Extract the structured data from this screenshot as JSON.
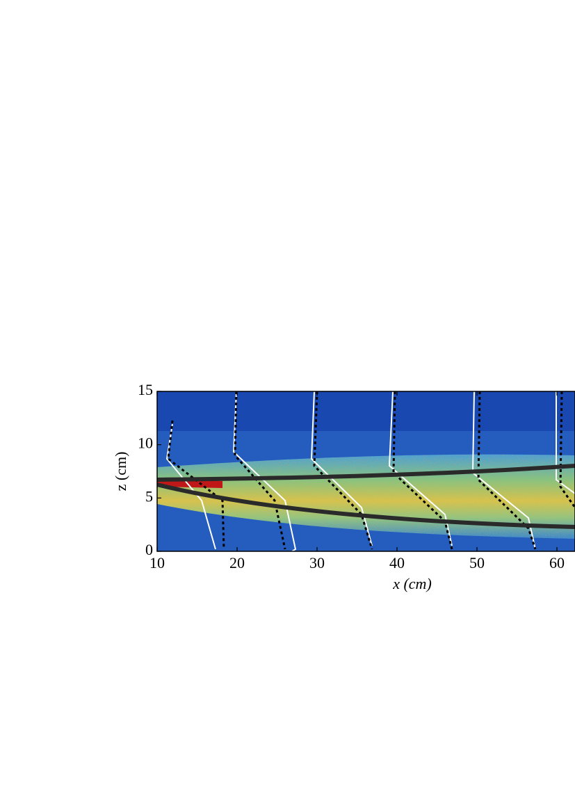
{
  "chart_data": {
    "type": "image",
    "xlabel": "x (cm)",
    "ylabel": "z (cm)",
    "xlim": [
      10,
      62.26
    ],
    "xticks": [
      10,
      20,
      30,
      40,
      50,
      60
    ],
    "ylim": [
      0,
      15
    ],
    "yticks": [
      0,
      5,
      10,
      15
    ]
  }
}
